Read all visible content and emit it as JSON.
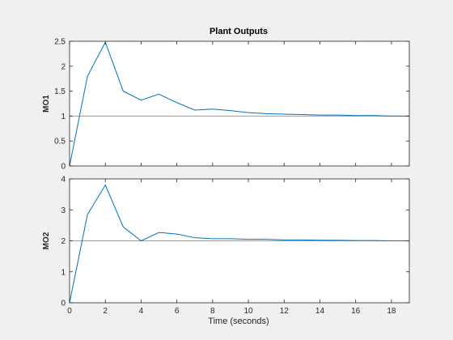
{
  "chart_data": {
    "type": "line",
    "title": "Plant Outputs",
    "xlabel": "Time (seconds)",
    "xlim": [
      0,
      19
    ],
    "xticks": [
      0,
      2,
      4,
      6,
      8,
      10,
      12,
      14,
      16,
      18
    ],
    "colors": {
      "series": "#0072bd",
      "reference": "#9a9a9a",
      "axes": "#262626",
      "background": "#ffffff"
    },
    "subplots": [
      {
        "ylabel": "MO1",
        "ylim": [
          0,
          2.5
        ],
        "yticks": [
          0,
          0.5,
          1,
          1.5,
          2,
          2.5
        ],
        "reference": 1,
        "series": [
          {
            "x": [
              0,
              1,
              2,
              3,
              4,
              5,
              6,
              7,
              8,
              9,
              10,
              11,
              12,
              13,
              14,
              15,
              16,
              17,
              18,
              19
            ],
            "y": [
              0,
              1.8,
              2.48,
              1.5,
              1.32,
              1.44,
              1.27,
              1.12,
              1.14,
              1.11,
              1.07,
              1.05,
              1.04,
              1.03,
              1.02,
              1.02,
              1.01,
              1.01,
              1.0,
              1.0
            ]
          }
        ]
      },
      {
        "ylabel": "MO2",
        "ylim": [
          0,
          4
        ],
        "yticks": [
          0,
          1,
          2,
          3,
          4
        ],
        "reference": 2,
        "series": [
          {
            "x": [
              0,
              1,
              2,
              3,
              4,
              5,
              6,
              7,
              8,
              9,
              10,
              11,
              12,
              13,
              14,
              15,
              16,
              17,
              18,
              19
            ],
            "y": [
              0,
              2.85,
              3.8,
              2.45,
              2.0,
              2.27,
              2.22,
              2.1,
              2.07,
              2.07,
              2.05,
              2.05,
              2.03,
              2.03,
              2.02,
              2.02,
              2.01,
              2.01,
              2.0,
              2.0
            ]
          }
        ]
      }
    ]
  }
}
